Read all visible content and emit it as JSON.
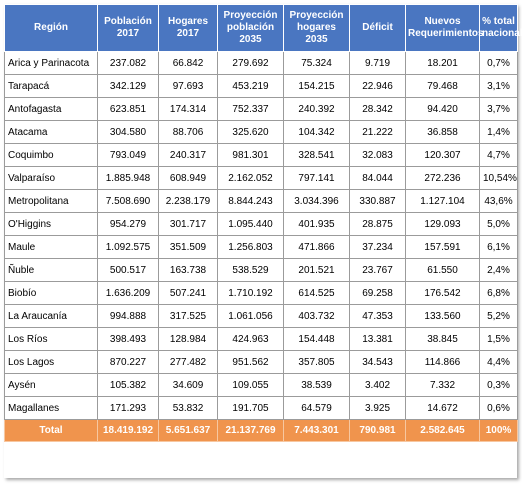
{
  "colors": {
    "header_bg": "#4a76c1",
    "footer_bg": "#f0944d",
    "grid": "#9b9b9b"
  },
  "headers": [
    "Región",
    "Población\n2017",
    "Hogares\n2017",
    "Proyección\npoblación\n2035",
    "Proyección\nhogares\n2035",
    "Déficit",
    "Nuevos\nRequerimientos",
    "% total\nnacional"
  ],
  "rows": [
    [
      "Arica y Parinacota",
      "237.082",
      "66.842",
      "279.692",
      "75.324",
      "9.719",
      "18.201",
      "0,7%"
    ],
    [
      "Tarapacá",
      "342.129",
      "97.693",
      "453.219",
      "154.215",
      "22.946",
      "79.468",
      "3,1%"
    ],
    [
      "Antofagasta",
      "623.851",
      "174.314",
      "752.337",
      "240.392",
      "28.342",
      "94.420",
      "3,7%"
    ],
    [
      "Atacama",
      "304.580",
      "88.706",
      "325.620",
      "104.342",
      "21.222",
      "36.858",
      "1,4%"
    ],
    [
      "Coquimbo",
      "793.049",
      "240.317",
      "981.301",
      "328.541",
      "32.083",
      "120.307",
      "4,7%"
    ],
    [
      "Valparaíso",
      "1.885.948",
      "608.949",
      "2.162.052",
      "797.141",
      "84.044",
      "272.236",
      "10,54%"
    ],
    [
      "Metropolitana",
      "7.508.690",
      "2.238.179",
      "8.844.243",
      "3.034.396",
      "330.887",
      "1.127.104",
      "43,6%"
    ],
    [
      "O'Higgins",
      "954.279",
      "301.717",
      "1.095.440",
      "401.935",
      "28.875",
      "129.093",
      "5,0%"
    ],
    [
      "Maule",
      "1.092.575",
      "351.509",
      "1.256.803",
      "471.866",
      "37.234",
      "157.591",
      "6,1%"
    ],
    [
      "Ñuble",
      "500.517",
      "163.738",
      "538.529",
      "201.521",
      "23.767",
      "61.550",
      "2,4%"
    ],
    [
      "Biobío",
      "1.636.209",
      "507.241",
      "1.710.192",
      "614.525",
      "69.258",
      "176.542",
      "6,8%"
    ],
    [
      "La Araucanía",
      "994.888",
      "317.525",
      "1.061.056",
      "403.732",
      "47.353",
      "133.560",
      "5,2%"
    ],
    [
      "Los Ríos",
      "398.493",
      "128.984",
      "424.963",
      "154.448",
      "13.381",
      "38.845",
      "1,5%"
    ],
    [
      "Los Lagos",
      "870.227",
      "277.482",
      "951.562",
      "357.805",
      "34.543",
      "114.866",
      "4,4%"
    ],
    [
      "Aysén",
      "105.382",
      "34.609",
      "109.055",
      "38.539",
      "3.402",
      "7.332",
      "0,3%"
    ],
    [
      "Magallanes",
      "171.293",
      "53.832",
      "191.705",
      "64.579",
      "3.925",
      "14.672",
      "0,6%"
    ]
  ],
  "total": [
    "Total",
    "18.419.192",
    "5.651.637",
    "21.137.769",
    "7.443.301",
    "790.981",
    "2.582.645",
    "100%"
  ]
}
